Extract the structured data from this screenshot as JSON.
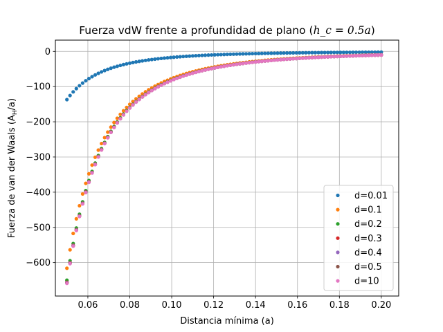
{
  "chart_data": {
    "type": "scatter",
    "title": "Fuerza vdW frente a profundidad de plano (",
    "title_math": "h_c = 0.5a",
    "title_close": ")",
    "xlabel": "Distancia mínima (a)",
    "ylabel": "Fuerza de van der Waals (A",
    "ylabel_sub": "H",
    "ylabel_close": "/a)",
    "xlim": [
      0.0445,
      0.2083
    ],
    "ylim": [
      -695,
      32
    ],
    "xticks": [
      0.06,
      0.08,
      0.1,
      0.12,
      0.14,
      0.16,
      0.18,
      0.2
    ],
    "xtick_labels": [
      "0.06",
      "0.08",
      "0.10",
      "0.12",
      "0.14",
      "0.16",
      "0.18",
      "0.20"
    ],
    "yticks": [
      0,
      -100,
      -200,
      -300,
      -400,
      -500,
      -600
    ],
    "ytick_labels": [
      "0",
      "−100",
      "−200",
      "−300",
      "−400",
      "−500",
      "−600"
    ],
    "grid": true,
    "legend_position": "lower-right",
    "x_range": [
      0.05,
      0.2
    ],
    "n_points": 101,
    "series": [
      {
        "name": "d=0.01",
        "color": "#1f77b4",
        "F_at_x0": -137
      },
      {
        "name": "d=0.1",
        "color": "#ff7f0e",
        "F_at_x0": -616
      },
      {
        "name": "d=0.2",
        "color": "#2ca02c",
        "F_at_x0": -650
      },
      {
        "name": "d=0.3",
        "color": "#d62728",
        "F_at_x0": -656
      },
      {
        "name": "d=0.4",
        "color": "#9467bd",
        "F_at_x0": -657
      },
      {
        "name": "d=0.5",
        "color": "#8c564b",
        "F_at_x0": -658
      },
      {
        "name": "d=10",
        "color": "#e377c2",
        "F_at_x0": -659
      }
    ]
  }
}
